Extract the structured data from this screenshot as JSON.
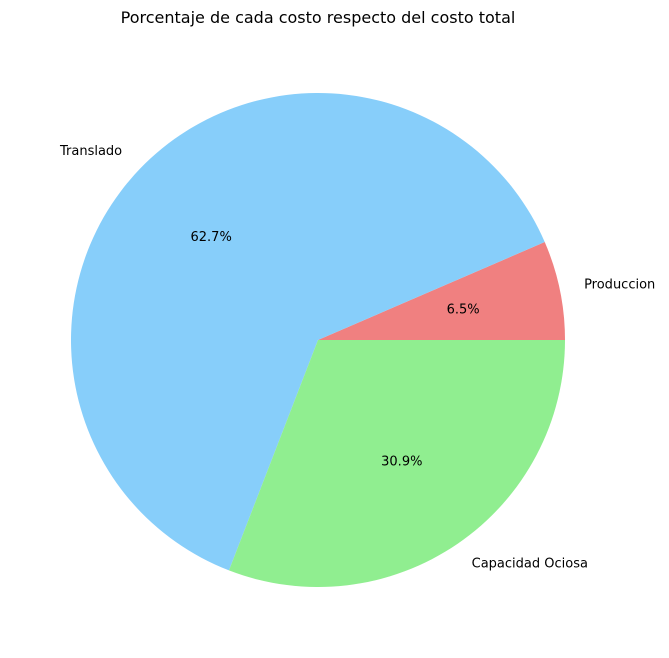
{
  "chart_data": {
    "type": "pie",
    "title": "Porcentaje de cada costo respecto del costo total",
    "slices": [
      {
        "label": "Produccion",
        "value": 6.5,
        "pct_label": "6.5%",
        "color": "#f08080"
      },
      {
        "label": "Translado",
        "value": 62.7,
        "pct_label": "62.7%",
        "color": "#87cefa"
      },
      {
        "label": "Capacidad Ociosa",
        "value": 30.9,
        "pct_label": "30.9%",
        "color": "#90ee90"
      }
    ],
    "start_angle_deg": 0,
    "direction": "counterclockwise"
  }
}
